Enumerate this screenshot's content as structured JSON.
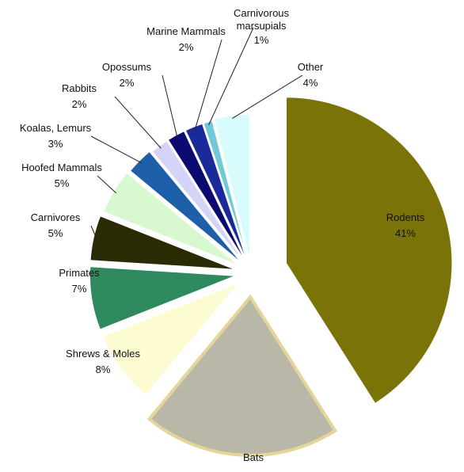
{
  "chart_data": {
    "type": "pie",
    "categories": [
      "Rodents",
      "Bats",
      "Shrews & Moles",
      "Primates",
      "Carnivores",
      "Hoofed Mammals",
      "Koalas, Lemurs",
      "Rabbits",
      "Opossums",
      "Marine Mammals",
      "Carnivorous marsupials",
      "Other"
    ],
    "values": [
      41,
      20,
      8,
      7,
      5,
      5,
      3,
      2,
      2,
      2,
      1,
      4
    ],
    "value_labels": [
      "41%",
      null,
      "8%",
      "7%",
      "5%",
      "5%",
      "3%",
      "2%",
      "2%",
      "2%",
      "1%",
      "4%"
    ],
    "colors": [
      "#7a7408",
      "#b9b8a8",
      "#fdfbd2",
      "#2e8a5e",
      "#2a2a05",
      "#d8f8d0",
      "#1d5fa8",
      "#d4d4f8",
      "#0a0a70",
      "#1a2a9a",
      "#6fc9d8",
      "#d8fbfb"
    ]
  }
}
